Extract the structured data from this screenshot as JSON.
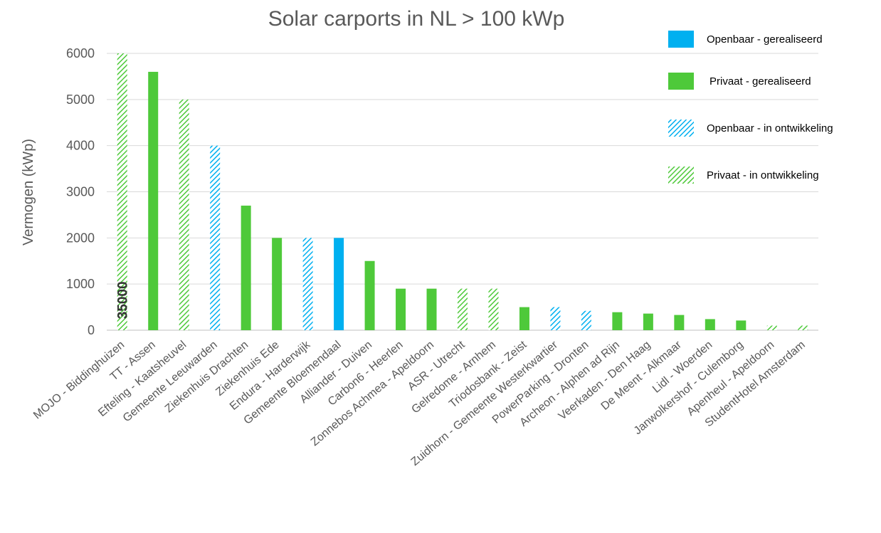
{
  "chart_data": {
    "type": "bar",
    "title": "Solar carports in NL > 100 kWp",
    "ylabel": "Vermogen (kWp)",
    "xlabel": "",
    "ylim": [
      0,
      6000
    ],
    "yticks": [
      0,
      1000,
      2000,
      3000,
      4000,
      5000,
      6000
    ],
    "grid": true,
    "legend_position": "top-right",
    "annotation": "35000",
    "categories": [
      "MOJO - Biddinghuizen",
      "TT - Assen",
      "Efteling - Kaatsheuvel",
      "Gemeente Leeuwarden",
      "Ziekenhuis Drachten",
      "Ziekenhuis Ede",
      "Endura - Harderwijk",
      "Gemeente Bloemendaal",
      "Alliander - Duiven",
      "Carbon6 - Heerlen",
      "Zonnebos Achmea - Apeldoorn",
      "ASR - Utrecht",
      "Gelredome - Arnhem",
      "Triodosbank - Zeist",
      "Zuidhorn - Gemeente Westerkwartier",
      "PowerParking - Dronten",
      "Archeon - Alphen ad Rijn",
      "Veerkaden - Den Haag",
      "De Meent - Alkmaar",
      "Lidl - Woerden",
      "Janwolkershof - Culemborg",
      "Apenheul - Apeldoorn",
      "StudentHotel Amsterdam"
    ],
    "values": [
      6000,
      5600,
      5000,
      4000,
      2700,
      2000,
      2000,
      2000,
      1500,
      900,
      900,
      900,
      900,
      500,
      500,
      420,
      390,
      360,
      330,
      240,
      210,
      100,
      100
    ],
    "status": [
      "pi",
      "pr",
      "pi",
      "oi",
      "pr",
      "pr",
      "oi",
      "or",
      "pr",
      "pr",
      "pr",
      "pi",
      "pi",
      "pr",
      "oi",
      "oi",
      "pr",
      "pr",
      "pr",
      "pr",
      "pr",
      "pi",
      "pi"
    ],
    "series": [
      {
        "key": "or",
        "name": "Openbaar - gerealiseerd",
        "color": "#00B0F0",
        "pattern": "solid"
      },
      {
        "key": "pr",
        "name": "Privaat - gerealiseerd",
        "color": "#4EC93A",
        "pattern": "solid"
      },
      {
        "key": "oi",
        "name": "Openbaar - in ontwikkeling",
        "color": "#00B0F0",
        "pattern": "hatched"
      },
      {
        "key": "pi",
        "name": "Privaat - in ontwikkeling",
        "color": "#4EC93A",
        "pattern": "hatched"
      }
    ]
  }
}
